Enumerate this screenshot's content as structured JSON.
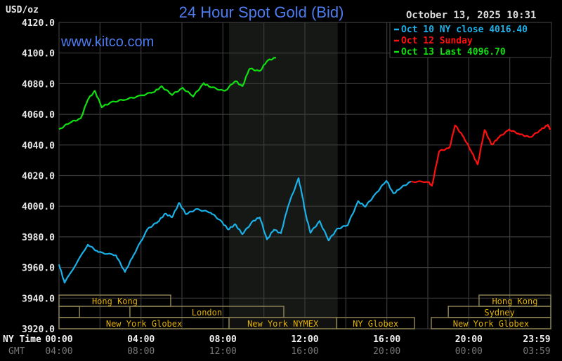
{
  "chart_data": {
    "type": "line",
    "title": "24 Hour Spot Gold (Bid)",
    "watermark": "www.kitco.com",
    "ylabel": "USD/oz",
    "timestamp": "October 13, 2025 10:31",
    "ylim": [
      3920,
      4120
    ],
    "xlim": [
      0,
      24
    ],
    "y_ticks": [
      "4120.0",
      "4100.0",
      "4080.0",
      "4060.0",
      "4040.0",
      "4020.0",
      "4000.0",
      "3980.0",
      "3960.0",
      "3940.0",
      "3920.0"
    ],
    "x_row_label": "NY Time",
    "x_ticks": [
      "00:00",
      "04:00",
      "08:00",
      "12:00",
      "16:00",
      "20:00",
      "23:59"
    ],
    "gmt_row_label": "GMT",
    "gmt_ticks": [
      "04:00",
      "08:00",
      "12:00",
      "16:00",
      "20:00",
      "00:00",
      "03:59"
    ],
    "grid": true,
    "legend_position": "top-right",
    "series": [
      {
        "name": "Oct 10 NY close 4016.40",
        "color": "#1ab0e8",
        "x": [
          0,
          0.27,
          1.41,
          1.92,
          2.78,
          3.22,
          3.63,
          4.32,
          4.83,
          5.18,
          5.52,
          5.86,
          6.2,
          6.72,
          7.4,
          7.92,
          8.26,
          8.6,
          8.95,
          9.46,
          9.8,
          10.15,
          10.49,
          10.83,
          11.17,
          11.69,
          11.86,
          12.03,
          12.27,
          12.72,
          13.16,
          13.58,
          14.09,
          14.6,
          14.95,
          15.46,
          15.98,
          16.32,
          16.66,
          17.18
        ],
        "y": [
          3962,
          3950,
          3975,
          3970,
          3968,
          3957,
          3968,
          3985,
          3990,
          3995,
          3993,
          4002,
          3995,
          3998,
          3996,
          3990,
          3985,
          3988,
          3982,
          3990,
          3993,
          3978,
          3985,
          3982,
          4000,
          4018,
          4008,
          3995,
          3983,
          3990,
          3978,
          3985,
          3988,
          4003,
          4000,
          4008,
          4017,
          4008,
          4012,
          4016
        ]
      },
      {
        "name": "Oct 12 Sunday",
        "color": "#ff1010",
        "x": [
          17.18,
          18.03,
          18.2,
          18.55,
          19.06,
          19.33,
          19.75,
          20.16,
          20.43,
          20.77,
          21.12,
          21.46,
          21.97,
          22.49,
          23.0,
          23.52,
          23.86,
          23.98
        ],
        "y": [
          4016,
          4016,
          4013,
          4036,
          4038,
          4053,
          4045,
          4035,
          4027,
          4050,
          4040,
          4045,
          4050,
          4047,
          4045,
          4050,
          4053,
          4050
        ]
      },
      {
        "name": "Oct 13 Last 4096.70",
        "color": "#10e010",
        "x": [
          0,
          0.55,
          1.06,
          1.41,
          1.75,
          2.09,
          2.61,
          3.29,
          3.98,
          4.66,
          5.01,
          5.52,
          6.03,
          6.55,
          7.06,
          7.4,
          8.09,
          8.6,
          8.95,
          9.29,
          9.8,
          10.15,
          10.59
        ],
        "y": [
          4050,
          4055,
          4057,
          4070,
          4075,
          4065,
          4068,
          4070,
          4072,
          4075,
          4078,
          4073,
          4077,
          4072,
          4080,
          4078,
          4075,
          4082,
          4078,
          4090,
          4088,
          4095,
          4097
        ]
      }
    ],
    "sessions": [
      "Hong Kong",
      "London",
      "New York Globex",
      "New York NYMEX",
      "NY Globex",
      "Hong Kong",
      "Sydney",
      "New York Globex"
    ]
  },
  "colors": {
    "title": "#4d7cf0",
    "session": "#e0b000",
    "session_border": "#8a8050"
  }
}
